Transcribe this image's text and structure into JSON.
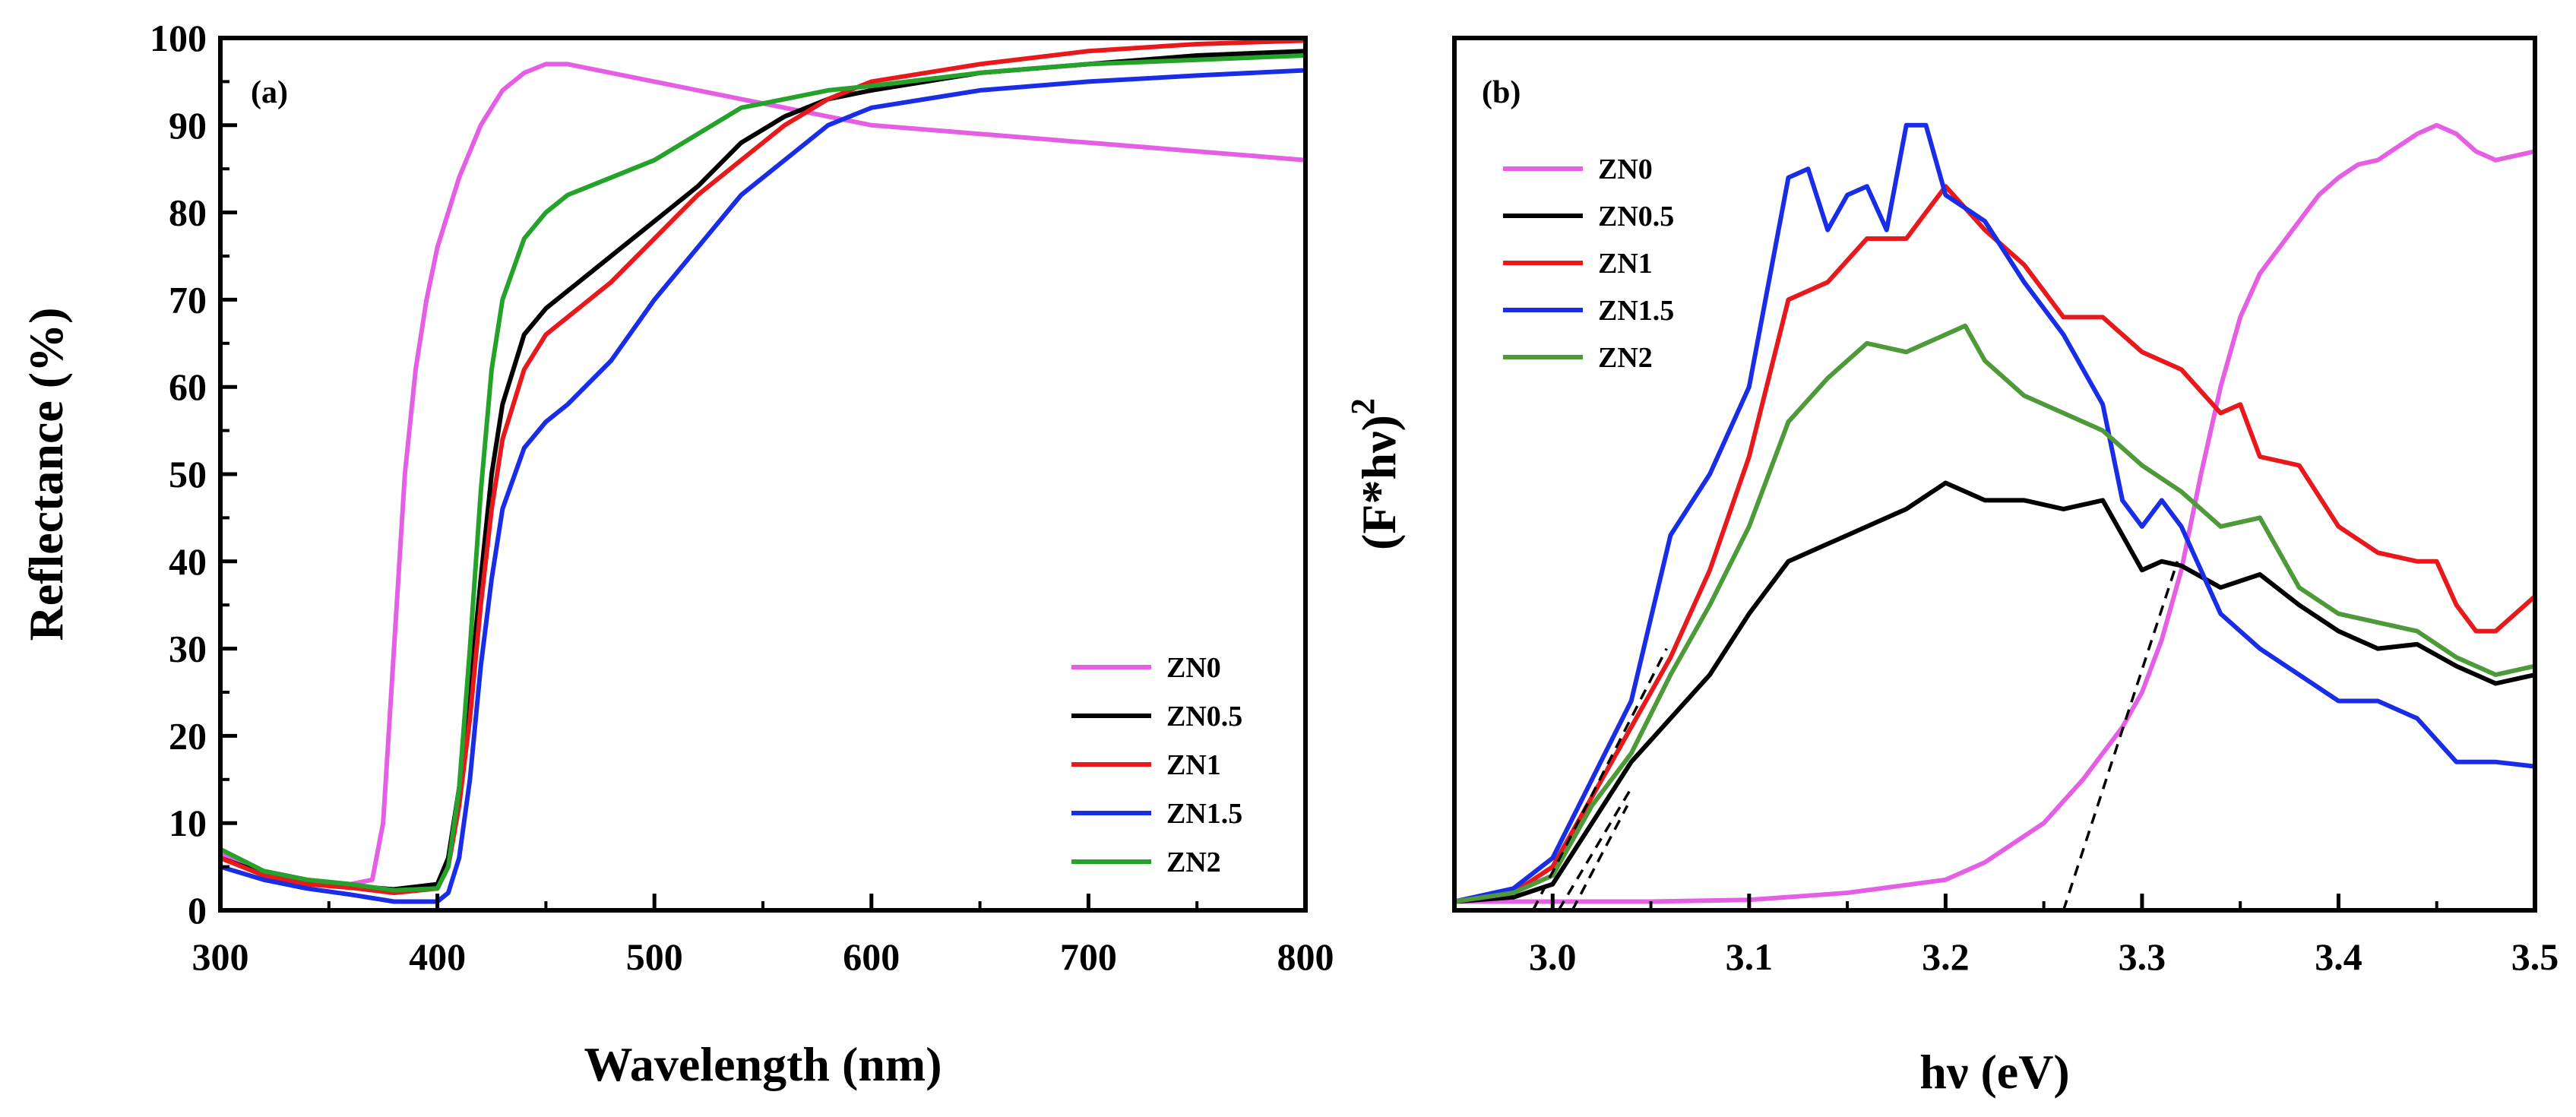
{
  "chart_data": [
    {
      "type": "line",
      "panel": "(a)",
      "xlabel": "Wavelength (nm)",
      "ylabel": "Reflectance (%)",
      "xlim": [
        300,
        800
      ],
      "ylim": [
        0,
        100
      ],
      "xticks": [
        300,
        400,
        500,
        600,
        700,
        800
      ],
      "yticks": [
        0,
        10,
        20,
        30,
        40,
        50,
        60,
        70,
        80,
        90,
        100
      ],
      "legend_position": "bottom-right",
      "series": [
        {
          "name": "ZN0",
          "color": "#e55fe5",
          "x": [
            300,
            320,
            340,
            360,
            370,
            375,
            380,
            385,
            390,
            395,
            400,
            410,
            420,
            430,
            440,
            450,
            460,
            470,
            480,
            500,
            520,
            540,
            560,
            580,
            600,
            650,
            700,
            750,
            800
          ],
          "y": [
            6.5,
            4.5,
            3.5,
            3,
            3.5,
            10,
            30,
            50,
            62,
            70,
            76,
            84,
            90,
            94,
            96,
            97,
            97,
            96.5,
            96,
            95,
            94,
            93,
            92,
            91,
            90,
            89,
            88,
            87,
            86
          ]
        },
        {
          "name": "ZN0.5",
          "color": "#000000",
          "x": [
            300,
            320,
            340,
            360,
            380,
            400,
            405,
            410,
            415,
            420,
            425,
            430,
            440,
            450,
            460,
            480,
            500,
            520,
            540,
            560,
            580,
            600,
            650,
            700,
            750,
            800
          ],
          "y": [
            6,
            4.2,
            3.2,
            2.8,
            2.4,
            3,
            6,
            14,
            25,
            38,
            50,
            58,
            66,
            69,
            71,
            75,
            79,
            83,
            88,
            91,
            93,
            94,
            96,
            97,
            98,
            98.5
          ]
        },
        {
          "name": "ZN1",
          "color": "#e8191d",
          "x": [
            300,
            320,
            340,
            360,
            380,
            400,
            405,
            410,
            415,
            420,
            425,
            430,
            440,
            450,
            460,
            480,
            500,
            520,
            540,
            560,
            580,
            600,
            650,
            700,
            750,
            800
          ],
          "y": [
            6,
            4,
            3,
            2.6,
            2,
            2.5,
            5,
            12,
            22,
            35,
            46,
            54,
            62,
            66,
            68,
            72,
            77,
            82,
            86,
            90,
            93,
            95,
            97,
            98.5,
            99.3,
            99.7
          ]
        },
        {
          "name": "ZN1.5",
          "color": "#1a2de6",
          "x": [
            300,
            320,
            340,
            360,
            380,
            400,
            405,
            410,
            415,
            420,
            425,
            430,
            440,
            450,
            460,
            480,
            500,
            520,
            540,
            560,
            580,
            600,
            650,
            700,
            750,
            800
          ],
          "y": [
            5,
            3.5,
            2.5,
            1.8,
            1,
            1,
            2,
            6,
            15,
            28,
            38,
            46,
            53,
            56,
            58,
            63,
            70,
            76,
            82,
            86,
            90,
            92,
            94,
            95,
            95.7,
            96.3
          ]
        },
        {
          "name": "ZN2",
          "color": "#24a22a",
          "x": [
            300,
            320,
            340,
            360,
            380,
            400,
            405,
            410,
            415,
            420,
            425,
            430,
            440,
            450,
            460,
            480,
            500,
            520,
            540,
            560,
            580,
            600,
            650,
            700,
            750,
            800
          ],
          "y": [
            7,
            4.5,
            3.5,
            3,
            2.3,
            2.5,
            5,
            14,
            30,
            48,
            62,
            70,
            77,
            80,
            82,
            84,
            86,
            89,
            92,
            93,
            94,
            94.5,
            96,
            97,
            97.5,
            98
          ]
        }
      ]
    },
    {
      "type": "line",
      "panel": "(b)",
      "xlabel": "hν (eV)",
      "ylabel": "(F*hν)",
      "ylabel_superscript": "2",
      "xlim": [
        2.95,
        3.5
      ],
      "ylim": [
        0,
        100
      ],
      "xticks": [
        3.0,
        3.1,
        3.2,
        3.3,
        3.4,
        3.5
      ],
      "xtick_labels": [
        "3.0",
        "3.1",
        "3.2",
        "3.3",
        "3.4",
        "3.5"
      ],
      "legend_position": "top-left",
      "series": [
        {
          "name": "ZN0",
          "color": "#e55fe5",
          "x": [
            2.95,
            3.0,
            3.05,
            3.1,
            3.15,
            3.2,
            3.22,
            3.25,
            3.27,
            3.29,
            3.3,
            3.31,
            3.32,
            3.33,
            3.34,
            3.35,
            3.36,
            3.37,
            3.38,
            3.39,
            3.4,
            3.41,
            3.42,
            3.43,
            3.44,
            3.45,
            3.46,
            3.47,
            3.48,
            3.5
          ],
          "y": [
            1,
            1,
            1,
            1.2,
            2,
            3.5,
            5.5,
            10,
            15,
            21,
            25,
            31,
            39,
            50,
            60,
            68,
            73,
            76,
            79,
            82,
            84,
            85.5,
            86,
            87.5,
            89,
            90,
            89,
            87,
            86,
            87
          ]
        },
        {
          "name": "ZN0.5",
          "color": "#000000",
          "x": [
            2.95,
            2.98,
            3.0,
            3.02,
            3.04,
            3.06,
            3.08,
            3.1,
            3.12,
            3.14,
            3.16,
            3.18,
            3.2,
            3.22,
            3.24,
            3.26,
            3.28,
            3.29,
            3.3,
            3.31,
            3.32,
            3.34,
            3.36,
            3.38,
            3.4,
            3.42,
            3.44,
            3.46,
            3.48,
            3.5
          ],
          "y": [
            1,
            1.5,
            3,
            10,
            17,
            22,
            27,
            34,
            40,
            42,
            44,
            46,
            49,
            47,
            47,
            46,
            47,
            43,
            39,
            40,
            39.5,
            37,
            38.5,
            35,
            32,
            30,
            30.5,
            28,
            26,
            27
          ]
        },
        {
          "name": "ZN1",
          "color": "#e8191d",
          "x": [
            2.95,
            2.98,
            3.0,
            3.02,
            3.04,
            3.06,
            3.08,
            3.1,
            3.12,
            3.14,
            3.16,
            3.18,
            3.2,
            3.22,
            3.24,
            3.26,
            3.28,
            3.3,
            3.32,
            3.34,
            3.35,
            3.36,
            3.38,
            3.4,
            3.42,
            3.44,
            3.45,
            3.46,
            3.47,
            3.48,
            3.5
          ],
          "y": [
            1,
            2,
            5,
            13,
            21,
            29,
            39,
            52,
            70,
            72,
            77,
            77,
            83,
            78,
            74,
            68,
            68,
            64,
            62,
            57,
            58,
            52,
            51,
            44,
            41,
            40,
            40,
            35,
            32,
            32,
            36
          ]
        },
        {
          "name": "ZN1.5",
          "color": "#1a2de6",
          "x": [
            2.95,
            2.98,
            3.0,
            3.02,
            3.04,
            3.06,
            3.08,
            3.1,
            3.12,
            3.13,
            3.14,
            3.15,
            3.16,
            3.17,
            3.18,
            3.19,
            3.2,
            3.22,
            3.24,
            3.26,
            3.28,
            3.29,
            3.3,
            3.31,
            3.32,
            3.34,
            3.36,
            3.38,
            3.4,
            3.42,
            3.44,
            3.46,
            3.48,
            3.5
          ],
          "y": [
            1,
            2.5,
            6,
            15,
            24,
            43,
            50,
            60,
            84,
            85,
            78,
            82,
            83,
            78,
            90,
            90,
            82,
            79,
            72,
            66,
            58,
            47,
            44,
            47,
            44,
            34,
            30,
            27,
            24,
            24,
            22,
            17,
            17,
            16.5
          ]
        },
        {
          "name": "ZN2",
          "color": "#4e9a3a",
          "x": [
            2.95,
            2.98,
            3.0,
            3.02,
            3.04,
            3.06,
            3.08,
            3.1,
            3.12,
            3.14,
            3.16,
            3.18,
            3.2,
            3.21,
            3.22,
            3.24,
            3.26,
            3.28,
            3.3,
            3.32,
            3.34,
            3.36,
            3.38,
            3.4,
            3.42,
            3.44,
            3.46,
            3.48,
            3.5
          ],
          "y": [
            1,
            2,
            4,
            12,
            18,
            27,
            35,
            44,
            56,
            61,
            65,
            64,
            66,
            67,
            63,
            59,
            57,
            55,
            51,
            48,
            44,
            45,
            37,
            34,
            33,
            32,
            29,
            27,
            28
          ]
        }
      ],
      "tangent_lines": [
        {
          "x1": 2.99,
          "y1": 0,
          "x2": 3.058,
          "y2": 30
        },
        {
          "x1": 3.003,
          "y1": 0,
          "x2": 3.04,
          "y2": 14
        },
        {
          "x1": 3.01,
          "y1": 0,
          "x2": 3.038,
          "y2": 12
        },
        {
          "x1": 3.26,
          "y1": 0,
          "x2": 3.318,
          "y2": 40
        }
      ]
    }
  ]
}
